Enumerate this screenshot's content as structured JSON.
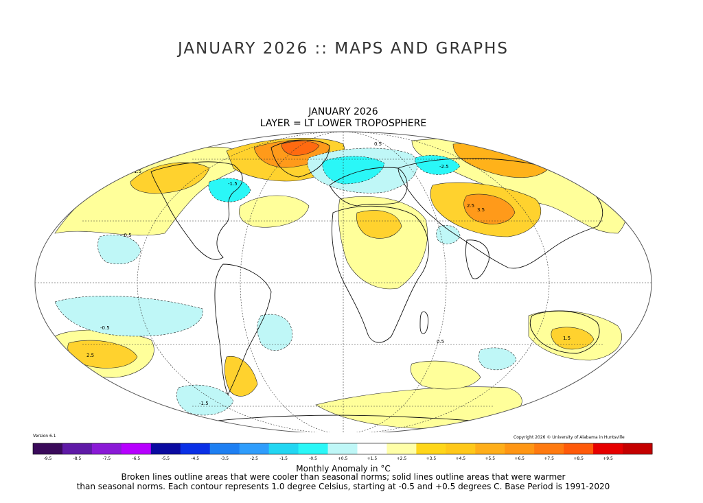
{
  "page": {
    "title": "JANUARY 2026 :: MAPS AND GRAPHS"
  },
  "map": {
    "title_line1": "JANUARY 2026",
    "title_line2": "LAYER = LT LOWER TROPOSPHERE",
    "version": "Version 6.1",
    "copyright": "Copyright 2026 © University of Alabama in Huntsville",
    "contour_labels": [
      "0.5",
      "1.5",
      "2.5",
      "3.5",
      "-0.5",
      "-1.5",
      "-2.5"
    ]
  },
  "legend": {
    "unit_label": "Monthly Anomaly in °C",
    "note_line1": "Broken lines outline areas that were cooler than seasonal norms; solid lines outline areas that were warmer",
    "note_line2": "than seasonal norms. Each contour represents 1.0 degree Celsius, starting at -0.5 and +0.5 degrees C. Base Period is 1991-2020",
    "ticks": [
      "-9.5",
      "-8.5",
      "-7.5",
      "-6.5",
      "-5.5",
      "-4.5",
      "-3.5",
      "-2.5",
      "-1.5",
      "-0.5",
      "+0.5",
      "+1.5",
      "+2.5",
      "+3.5",
      "+4.5",
      "+5.5",
      "+6.5",
      "+7.5",
      "+8.5",
      "+9.5"
    ],
    "colors": [
      "#3a0a5a",
      "#5f1aa6",
      "#8a1ad6",
      "#b700ff",
      "#0a0aa0",
      "#0a30e6",
      "#1e7ff2",
      "#2f9dfc",
      "#22d6f2",
      "#2af7f7",
      "#bff7f7",
      "#ffffff",
      "#ffffa8",
      "#ffd61a",
      "#ffc81a",
      "#ffae1a",
      "#ff9614",
      "#ff7a10",
      "#ff5a0a",
      "#e60000",
      "#c40000"
    ]
  }
}
